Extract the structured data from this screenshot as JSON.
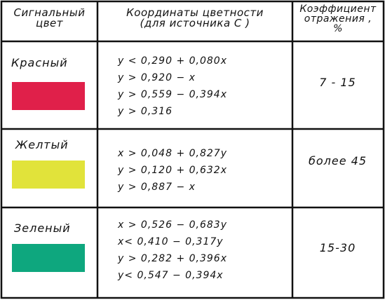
{
  "header": {
    "col1": [
      "Сигнальный",
      "цвет"
    ],
    "col2": [
      "Координаты цветности",
      "(для источника С )"
    ],
    "col3": [
      "Коэффициент",
      "отражения ,",
      "%"
    ]
  },
  "rows": [
    {
      "name": "Красный",
      "color": "#e0204a",
      "conditions": [
        "y < 0,290 + 0,080x",
        "y > 0,920 − x",
        "y > 0,559 − 0,394x",
        "y > 0,316"
      ],
      "coefficient": "7 - 15"
    },
    {
      "name": "Желтый",
      "color": "#e1e33a",
      "conditions": [
        "x > 0,048 + 0,827y",
        "y > 0,120 + 0,632x",
        "y > 0,887 − x"
      ],
      "coefficient": "более 45"
    },
    {
      "name": "Зеленый",
      "color": "#0ea77e",
      "conditions": [
        "x > 0,526 − 0,683y",
        "x< 0,410 − 0,317y",
        "y > 0,282 + 0,396x",
        "y< 0,547 − 0,394x"
      ],
      "coefficient": "15-30"
    }
  ]
}
